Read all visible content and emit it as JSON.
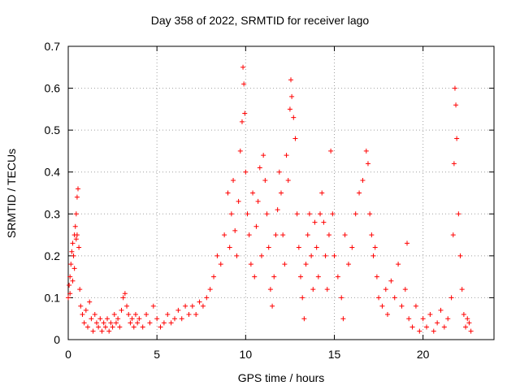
{
  "chart_data": {
    "type": "scatter",
    "title": "Day 358 of 2022, SRMTID for receiver lago",
    "xlabel": "GPS time / hours",
    "ylabel": "SRMTID / TECUs",
    "xlim": [
      0,
      24
    ],
    "ylim": [
      0,
      0.7
    ],
    "xticks": [
      "0",
      "5",
      "10",
      "15",
      "20"
    ],
    "yticks": [
      "0",
      "0.1",
      "0.2",
      "0.3",
      "0.4",
      "0.5",
      "0.6",
      "0.7"
    ],
    "grid": true,
    "marker": "+",
    "series": [
      {
        "name": "SRMTID",
        "color": "#ff0000",
        "points": [
          [
            0.0,
            0.1
          ],
          [
            0.05,
            0.13
          ],
          [
            0.1,
            0.15
          ],
          [
            0.15,
            0.18
          ],
          [
            0.2,
            0.21
          ],
          [
            0.25,
            0.23
          ],
          [
            0.3,
            0.2
          ],
          [
            0.35,
            0.25
          ],
          [
            0.4,
            0.27
          ],
          [
            0.45,
            0.3
          ],
          [
            0.5,
            0.34
          ],
          [
            0.55,
            0.36
          ],
          [
            0.5,
            0.25
          ],
          [
            0.45,
            0.24
          ],
          [
            0.6,
            0.22
          ],
          [
            0.35,
            0.17
          ],
          [
            0.25,
            0.14
          ],
          [
            0.1,
            0.11
          ],
          [
            0.65,
            0.12
          ],
          [
            0.7,
            0.08
          ],
          [
            0.8,
            0.06
          ],
          [
            0.9,
            0.04
          ],
          [
            1.0,
            0.07
          ],
          [
            1.1,
            0.03
          ],
          [
            1.2,
            0.09
          ],
          [
            1.3,
            0.05
          ],
          [
            1.4,
            0.02
          ],
          [
            1.5,
            0.06
          ],
          [
            1.6,
            0.04
          ],
          [
            1.7,
            0.03
          ],
          [
            1.8,
            0.05
          ],
          [
            1.9,
            0.02
          ],
          [
            2.0,
            0.04
          ],
          [
            2.1,
            0.03
          ],
          [
            2.2,
            0.05
          ],
          [
            2.3,
            0.02
          ],
          [
            2.4,
            0.04
          ],
          [
            2.5,
            0.03
          ],
          [
            2.6,
            0.06
          ],
          [
            2.7,
            0.04
          ],
          [
            2.8,
            0.05
          ],
          [
            2.9,
            0.03
          ],
          [
            3.0,
            0.07
          ],
          [
            3.1,
            0.1
          ],
          [
            3.2,
            0.11
          ],
          [
            3.3,
            0.08
          ],
          [
            3.4,
            0.06
          ],
          [
            3.5,
            0.04
          ],
          [
            3.6,
            0.05
          ],
          [
            3.7,
            0.03
          ],
          [
            3.8,
            0.06
          ],
          [
            3.9,
            0.04
          ],
          [
            4.0,
            0.05
          ],
          [
            4.2,
            0.03
          ],
          [
            4.4,
            0.06
          ],
          [
            4.6,
            0.04
          ],
          [
            4.8,
            0.08
          ],
          [
            5.0,
            0.05
          ],
          [
            5.2,
            0.03
          ],
          [
            5.4,
            0.04
          ],
          [
            5.6,
            0.06
          ],
          [
            5.8,
            0.04
          ],
          [
            6.0,
            0.05
          ],
          [
            6.2,
            0.07
          ],
          [
            6.4,
            0.05
          ],
          [
            6.6,
            0.08
          ],
          [
            6.8,
            0.06
          ],
          [
            7.0,
            0.08
          ],
          [
            7.2,
            0.06
          ],
          [
            7.4,
            0.09
          ],
          [
            7.6,
            0.08
          ],
          [
            7.8,
            0.1
          ],
          [
            8.0,
            0.12
          ],
          [
            8.2,
            0.15
          ],
          [
            8.4,
            0.2
          ],
          [
            8.6,
            0.18
          ],
          [
            8.8,
            0.25
          ],
          [
            9.0,
            0.35
          ],
          [
            9.1,
            0.22
          ],
          [
            9.2,
            0.3
          ],
          [
            9.3,
            0.38
          ],
          [
            9.4,
            0.26
          ],
          [
            9.5,
            0.2
          ],
          [
            9.6,
            0.33
          ],
          [
            9.7,
            0.45
          ],
          [
            9.8,
            0.52
          ],
          [
            9.85,
            0.65
          ],
          [
            9.9,
            0.61
          ],
          [
            9.95,
            0.54
          ],
          [
            10.0,
            0.4
          ],
          [
            10.1,
            0.3
          ],
          [
            10.2,
            0.25
          ],
          [
            10.3,
            0.18
          ],
          [
            10.4,
            0.35
          ],
          [
            10.5,
            0.15
          ],
          [
            10.6,
            0.27
          ],
          [
            10.7,
            0.33
          ],
          [
            10.8,
            0.41
          ],
          [
            10.9,
            0.2
          ],
          [
            11.0,
            0.44
          ],
          [
            11.1,
            0.38
          ],
          [
            11.2,
            0.3
          ],
          [
            11.3,
            0.22
          ],
          [
            11.4,
            0.12
          ],
          [
            11.5,
            0.08
          ],
          [
            11.6,
            0.15
          ],
          [
            11.7,
            0.25
          ],
          [
            11.8,
            0.31
          ],
          [
            11.9,
            0.4
          ],
          [
            12.0,
            0.35
          ],
          [
            12.1,
            0.25
          ],
          [
            12.2,
            0.18
          ],
          [
            12.3,
            0.44
          ],
          [
            12.4,
            0.38
          ],
          [
            12.5,
            0.55
          ],
          [
            12.55,
            0.62
          ],
          [
            12.6,
            0.58
          ],
          [
            12.7,
            0.53
          ],
          [
            12.8,
            0.48
          ],
          [
            12.9,
            0.3
          ],
          [
            13.0,
            0.22
          ],
          [
            13.1,
            0.15
          ],
          [
            13.2,
            0.1
          ],
          [
            13.3,
            0.05
          ],
          [
            13.4,
            0.18
          ],
          [
            13.5,
            0.25
          ],
          [
            13.6,
            0.3
          ],
          [
            13.7,
            0.2
          ],
          [
            13.8,
            0.12
          ],
          [
            13.9,
            0.28
          ],
          [
            14.0,
            0.22
          ],
          [
            14.1,
            0.15
          ],
          [
            14.2,
            0.3
          ],
          [
            14.3,
            0.35
          ],
          [
            14.4,
            0.28
          ],
          [
            14.5,
            0.2
          ],
          [
            14.6,
            0.12
          ],
          [
            14.7,
            0.25
          ],
          [
            14.8,
            0.45
          ],
          [
            14.9,
            0.3
          ],
          [
            15.0,
            0.2
          ],
          [
            15.2,
            0.15
          ],
          [
            15.4,
            0.1
          ],
          [
            15.5,
            0.05
          ],
          [
            15.6,
            0.25
          ],
          [
            15.8,
            0.18
          ],
          [
            16.0,
            0.22
          ],
          [
            16.2,
            0.3
          ],
          [
            16.4,
            0.35
          ],
          [
            16.6,
            0.38
          ],
          [
            16.8,
            0.45
          ],
          [
            16.9,
            0.42
          ],
          [
            17.0,
            0.3
          ],
          [
            17.1,
            0.25
          ],
          [
            17.2,
            0.2
          ],
          [
            17.3,
            0.22
          ],
          [
            17.4,
            0.15
          ],
          [
            17.5,
            0.1
          ],
          [
            17.7,
            0.08
          ],
          [
            17.9,
            0.12
          ],
          [
            18.0,
            0.06
          ],
          [
            18.2,
            0.14
          ],
          [
            18.4,
            0.1
          ],
          [
            18.6,
            0.18
          ],
          [
            18.8,
            0.08
          ],
          [
            19.0,
            0.12
          ],
          [
            19.1,
            0.23
          ],
          [
            19.2,
            0.05
          ],
          [
            19.4,
            0.03
          ],
          [
            19.6,
            0.08
          ],
          [
            19.8,
            0.02
          ],
          [
            20.0,
            0.05
          ],
          [
            20.2,
            0.03
          ],
          [
            20.4,
            0.06
          ],
          [
            20.6,
            0.02
          ],
          [
            20.8,
            0.04
          ],
          [
            21.0,
            0.07
          ],
          [
            21.2,
            0.03
          ],
          [
            21.4,
            0.05
          ],
          [
            21.6,
            0.1
          ],
          [
            21.7,
            0.25
          ],
          [
            21.75,
            0.42
          ],
          [
            21.8,
            0.6
          ],
          [
            21.85,
            0.56
          ],
          [
            21.9,
            0.48
          ],
          [
            22.0,
            0.3
          ],
          [
            22.1,
            0.2
          ],
          [
            22.2,
            0.12
          ],
          [
            22.3,
            0.06
          ],
          [
            22.4,
            0.03
          ],
          [
            22.5,
            0.05
          ],
          [
            22.6,
            0.04
          ],
          [
            22.7,
            0.02
          ]
        ]
      }
    ]
  }
}
